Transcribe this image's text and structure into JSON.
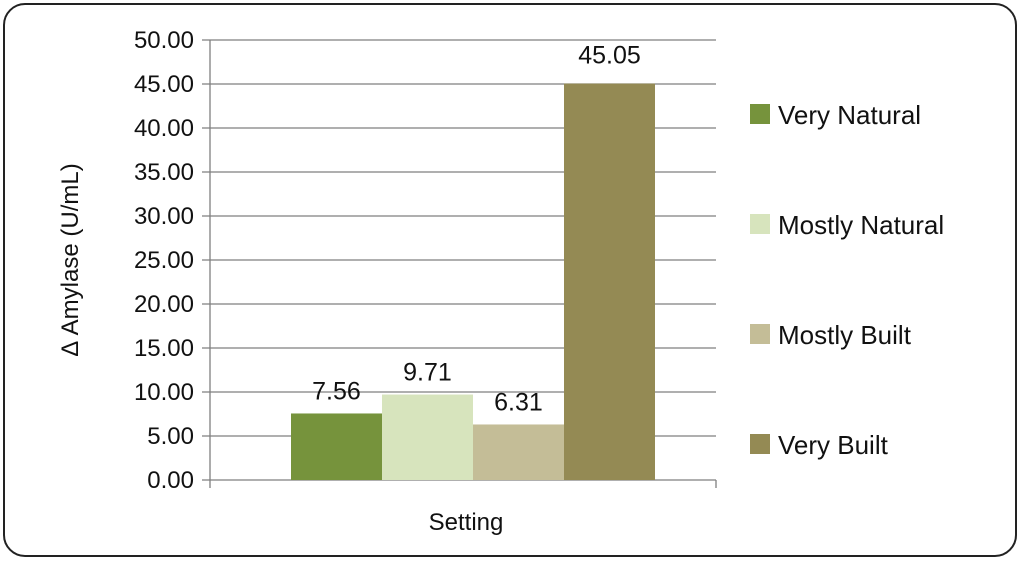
{
  "chart_data": {
    "type": "bar",
    "title": "",
    "xlabel": "Setting",
    "ylabel": "Δ Amylase (U/mL)",
    "ylim": [
      0,
      50
    ],
    "yticks": [
      "0.00",
      "5.00",
      "10.00",
      "15.00",
      "20.00",
      "25.00",
      "30.00",
      "35.00",
      "40.00",
      "45.00",
      "50.00"
    ],
    "grid": true,
    "legend_position": "right",
    "series": [
      {
        "name": "Very Natural",
        "value": 7.56,
        "label": "7.56",
        "color": "#76933c"
      },
      {
        "name": "Mostly Natural",
        "value": 9.71,
        "label": "9.71",
        "color": "#d7e4bd"
      },
      {
        "name": "Mostly Built",
        "value": 6.31,
        "label": "6.31",
        "color": "#c4bd97"
      },
      {
        "name": "Very Built",
        "value": 45.05,
        "label": "45.05",
        "color": "#948a54"
      }
    ]
  }
}
